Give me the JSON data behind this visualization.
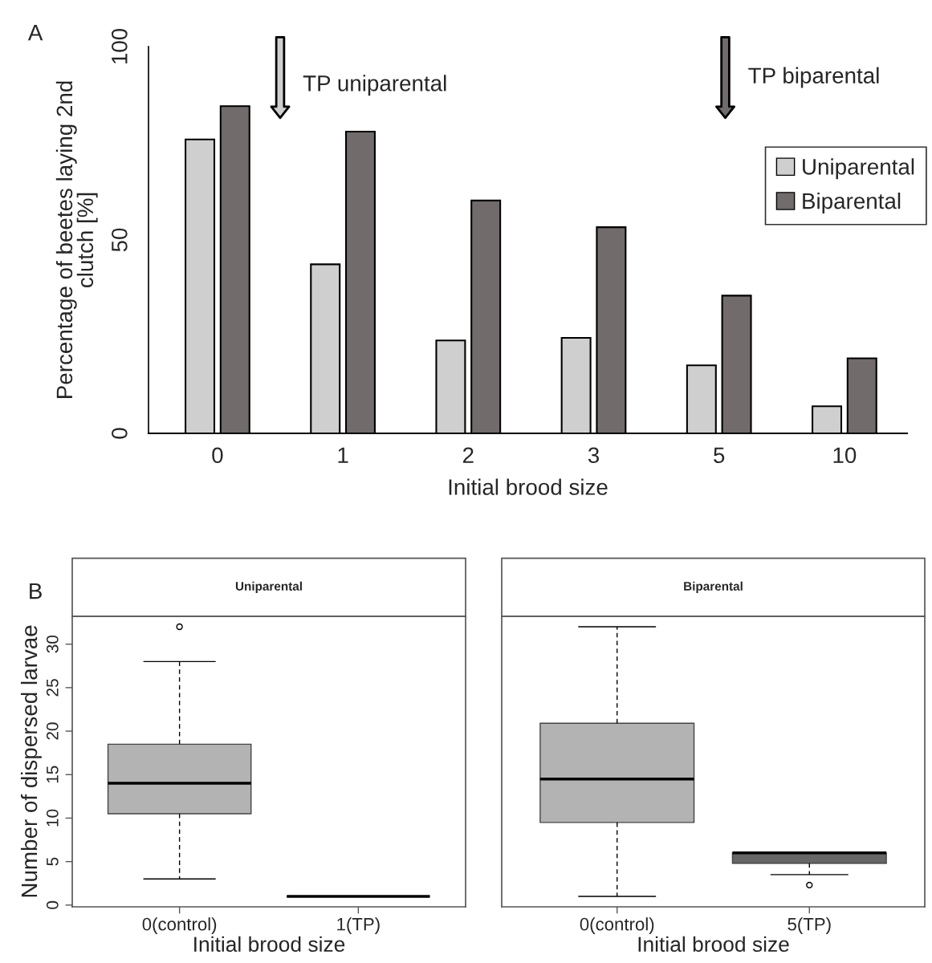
{
  "chart_data": [
    {
      "type": "bar",
      "xlabel": "Initial brood size",
      "ylabel": "Percentage of beetes laying 2nd\nclutch [%]",
      "categories": [
        "0",
        "1",
        "2",
        "3",
        "5",
        "10"
      ],
      "series": [
        {
          "name": "Uniparental",
          "color": "#d0cfd0",
          "values": [
            76,
            43.7,
            24,
            24.7,
            17.6,
            7
          ]
        },
        {
          "name": "Biparental",
          "color": "#716b6b",
          "values": [
            84.6,
            78,
            60.2,
            53.3,
            35.6,
            19.4
          ]
        }
      ],
      "ylim": [
        0,
        100
      ],
      "yticks": [
        0,
        50,
        100
      ],
      "grid": false,
      "legend": "right",
      "annotations": [
        "A",
        "TP uniparental",
        "TP biparental"
      ]
    },
    {
      "type": "box",
      "title": "Uniparental",
      "xlabel": "Initial brood size",
      "ylabel": "Number of dispersed larvae",
      "categories": [
        "0(control)",
        "1(TP)"
      ],
      "boxes": [
        {
          "low": 3,
          "q1": 10.5,
          "median": 14,
          "q3": 18.5,
          "high": 28,
          "outliers": [
            32
          ]
        },
        {
          "low": 1,
          "q1": 1,
          "median": 1,
          "q3": 1,
          "high": 1
        }
      ],
      "colors": [
        "#b3b3b3",
        "#444444"
      ],
      "ylim": [
        -0.2,
        33.2
      ],
      "yticks": [
        0,
        5,
        10,
        15,
        20,
        25,
        30
      ],
      "grid": false,
      "annotations": [
        "B"
      ]
    },
    {
      "type": "box",
      "title": "Biparental",
      "xlabel": "Initial brood size",
      "categories": [
        "0(control)",
        "5(TP)"
      ],
      "boxes": [
        {
          "low": 1,
          "q1": 9.5,
          "median": 14.5,
          "q3": 20.9,
          "high": 32
        },
        {
          "low": 3.5,
          "q1": 4.8,
          "median": 6,
          "q3": 6,
          "high": 6,
          "outliers": [
            2.3
          ]
        }
      ],
      "colors": [
        "#b3b3b3",
        "#666666"
      ],
      "ylim": [
        -0.2,
        33.2
      ],
      "tick_labels": "x",
      "grid": false
    }
  ]
}
